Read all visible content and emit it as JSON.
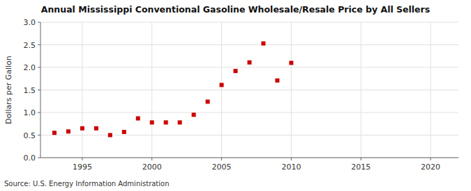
{
  "chart_data": {
    "type": "scatter",
    "title": "Annual Mississippi Conventional Gasoline Wholesale/Resale Price by All Sellers",
    "y_label": "Dollars per Gallon",
    "source": "Source: U.S. Energy Information Administration",
    "x": [
      1993,
      1994,
      1995,
      1996,
      1997,
      1998,
      1999,
      2000,
      2001,
      2002,
      2003,
      2004,
      2005,
      2006,
      2007,
      2008,
      2009,
      2010
    ],
    "values": [
      0.55,
      0.58,
      0.65,
      0.65,
      0.5,
      0.57,
      0.87,
      0.78,
      0.78,
      0.78,
      0.95,
      1.24,
      1.61,
      1.92,
      2.11,
      2.53,
      1.71,
      2.1
    ],
    "xlim": [
      1992,
      2022
    ],
    "ylim": [
      0.0,
      3.0
    ],
    "xticks": [
      1995,
      2000,
      2005,
      2010,
      2015,
      2020
    ],
    "yticks": [
      {
        "value": 0.0,
        "label": "0.0"
      },
      0.5,
      {
        "value": 1.0,
        "label": "1.0"
      },
      1.5,
      {
        "value": 2.0,
        "label": "2.0"
      },
      2.5,
      {
        "value": 3.0,
        "label": "3.0"
      }
    ],
    "color": "#cc0000",
    "marker": "square",
    "grid": true
  }
}
